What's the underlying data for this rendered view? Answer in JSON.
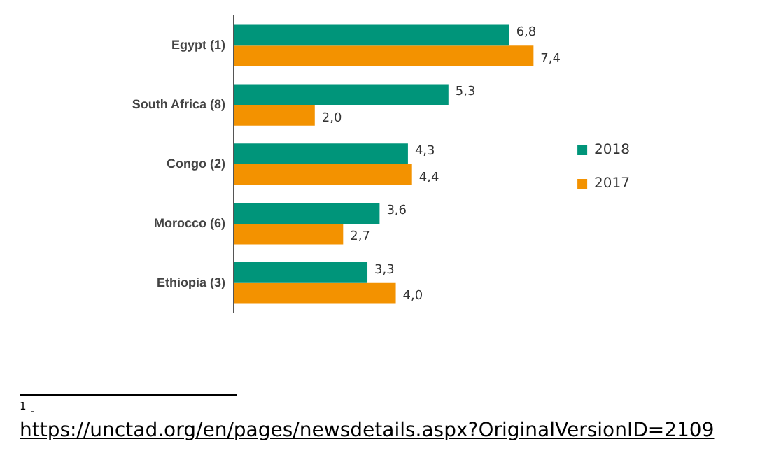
{
  "chart_data": {
    "type": "bar",
    "orientation": "horizontal",
    "categories": [
      "Egypt (1)",
      "South Africa (8)",
      "Congo (2)",
      "Morocco (6)",
      "Ethiopia (3)"
    ],
    "series": [
      {
        "name": "2018",
        "color": "#00957a",
        "values": [
          6.8,
          5.3,
          4.3,
          3.6,
          3.3
        ],
        "value_labels": [
          "6,8",
          "5,3",
          "4,3",
          "3,6",
          "3,3"
        ]
      },
      {
        "name": "2017",
        "color": "#f39200",
        "values": [
          7.4,
          2.0,
          4.4,
          2.7,
          4.0
        ],
        "value_labels": [
          "7,4",
          "2,0",
          "4,4",
          "2,7",
          "4,0"
        ]
      }
    ],
    "legend": "right",
    "grid": false,
    "annotations": [
      "$^{1}$ -",
      "https://unctad.org/en/pages/newsdetails.aspx?OriginalVersionID=2109"
    ]
  }
}
